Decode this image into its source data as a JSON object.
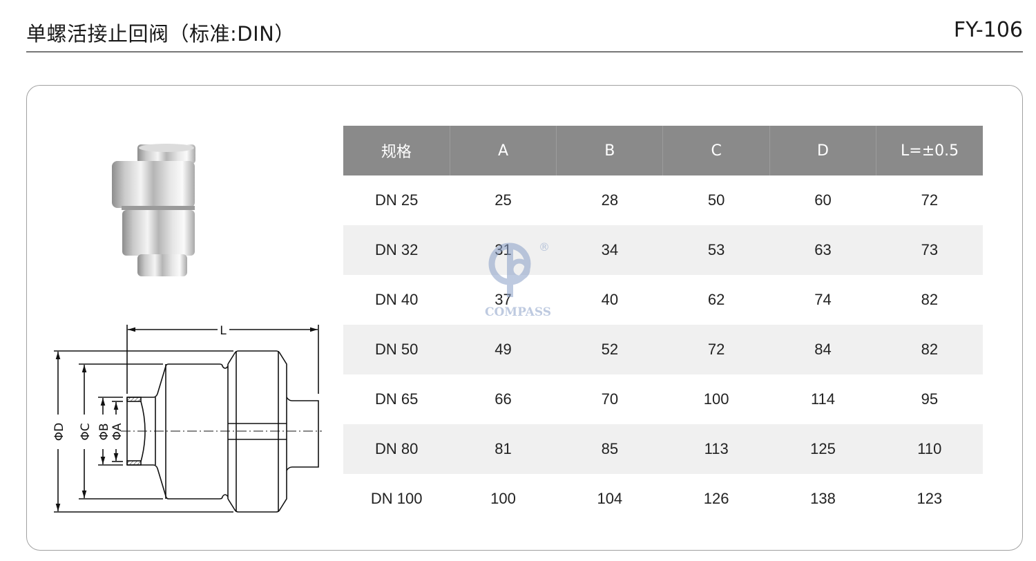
{
  "header": {
    "title": "单螺活接止回阀（标准:DIN）",
    "model_code": "FY-106"
  },
  "drawing": {
    "labels": {
      "L": "L",
      "D": "ΦD",
      "C": "ΦC",
      "B": "ΦB",
      "A": "ΦA"
    }
  },
  "watermark": {
    "brand": "COMPASS",
    "registered": "®"
  },
  "table": {
    "headers": [
      "规格",
      "A",
      "B",
      "C",
      "D",
      "L=±0.5"
    ],
    "rows": [
      [
        "DN 25",
        "25",
        "28",
        "50",
        "60",
        "72"
      ],
      [
        "DN 32",
        "31",
        "34",
        "53",
        "63",
        "73"
      ],
      [
        "DN 40",
        "37",
        "40",
        "62",
        "74",
        "82"
      ],
      [
        "DN 50",
        "49",
        "52",
        "72",
        "84",
        "82"
      ],
      [
        "DN 65",
        "66",
        "70",
        "100",
        "114",
        "95"
      ],
      [
        "DN 80",
        "81",
        "85",
        "113",
        "125",
        "110"
      ],
      [
        "DN 100",
        "100",
        "104",
        "126",
        "138",
        "123"
      ]
    ]
  },
  "colors": {
    "header_bg": "#8a8a8a",
    "alt_row_bg": "#f0f0f0",
    "watermark": "#8aa0c8"
  }
}
